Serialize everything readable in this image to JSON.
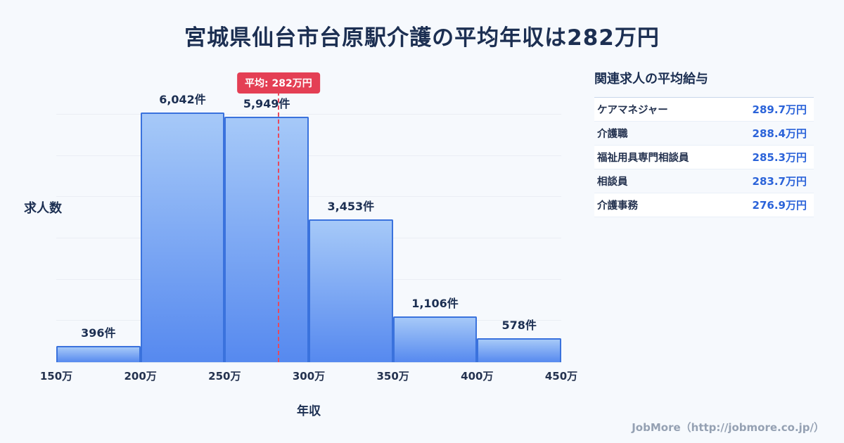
{
  "title": "宮城県仙台市台原駅介護の平均年収は282万円",
  "chart_data": {
    "type": "bar",
    "title": "宮城県仙台市台原駅介護の平均年収は282万円",
    "xlabel": "年収",
    "ylabel": "求人数",
    "x_range": [
      150,
      450
    ],
    "x_unit": "万",
    "ylim": [
      0,
      6900
    ],
    "categories": [
      "150万",
      "200万",
      "250万",
      "300万",
      "350万",
      "400万",
      "450万"
    ],
    "bins": [
      {
        "range": "150万-200万",
        "count": 396,
        "label": "396件"
      },
      {
        "range": "200万-250万",
        "count": 6042,
        "label": "6,042件"
      },
      {
        "range": "250万-300万",
        "count": 5949,
        "label": "5,949件"
      },
      {
        "range": "300万-350万",
        "count": 3453,
        "label": "3,453件"
      },
      {
        "range": "350万-400万",
        "count": 1106,
        "label": "1,106件"
      },
      {
        "range": "400万-450万",
        "count": 578,
        "label": "578件"
      }
    ],
    "values": [
      396,
      6042,
      5949,
      3453,
      1106,
      578
    ],
    "value_labels": [
      "396件",
      "6,042件",
      "5,949件",
      "3,453件",
      "1,106件",
      "578件"
    ],
    "mean_line": {
      "value": 282,
      "label": "平均: 282万円"
    },
    "grid": "horizontal-faint",
    "legend": "none"
  },
  "side_panel": {
    "title": "関連求人の平均給与",
    "rows": [
      {
        "label": "ケアマネジャー",
        "value": "289.7万円"
      },
      {
        "label": "介護職",
        "value": "288.4万円"
      },
      {
        "label": "福祉用具専門相談員",
        "value": "285.3万円"
      },
      {
        "label": "相談員",
        "value": "283.7万円"
      },
      {
        "label": "介護事務",
        "value": "276.9万円"
      }
    ]
  },
  "footer": {
    "credit": "JobMore（http://jobmore.co.jp/）"
  },
  "colors": {
    "background": "#f6f9fd",
    "title_text": "#1c2f52",
    "bar_fill_top": "#a6c9f8",
    "bar_fill_bottom": "#5689ef",
    "bar_border": "#3a72dd",
    "mean_line": "#e8495d",
    "mean_badge_bg": "#e43f54",
    "value_accent": "#2b63d9",
    "footer_text": "#95a1b3"
  }
}
